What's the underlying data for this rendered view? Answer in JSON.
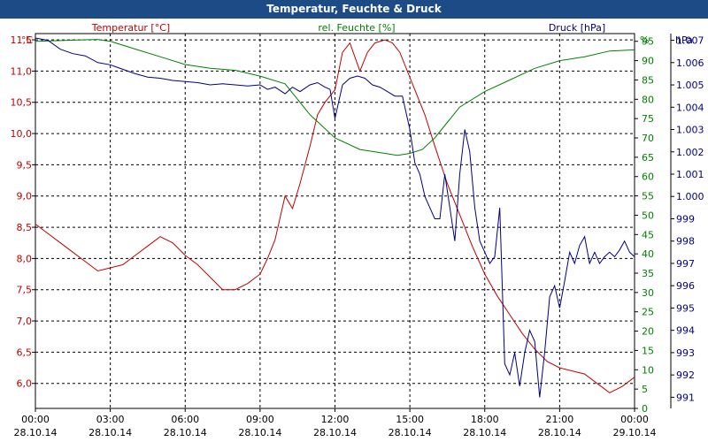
{
  "window": {
    "title": "Temperatur, Feuchte & Druck"
  },
  "chart_data": {
    "type": "line",
    "title": "Temperatur, Feuchte & Druck",
    "grid": true,
    "x_ticks": [
      {
        "time": "00:00",
        "date": "28.10.14"
      },
      {
        "time": "03:00",
        "date": "28.10.14"
      },
      {
        "time": "06:00",
        "date": "28.10.14"
      },
      {
        "time": "09:00",
        "date": "28.10.14"
      },
      {
        "time": "12:00",
        "date": "28.10.14"
      },
      {
        "time": "15:00",
        "date": "28.10.14"
      },
      {
        "time": "18:00",
        "date": "28.10.14"
      },
      {
        "time": "21:00",
        "date": "28.10.14"
      },
      {
        "time": "00:00",
        "date": "29.10.14"
      }
    ],
    "axes": {
      "temperature": {
        "label": "Temperatur [°C]",
        "unit": "°C",
        "color": "#c00000",
        "range": [
          5.6,
          11.6
        ],
        "ticks": [
          "11,5",
          "11,0",
          "10,5",
          "10,0",
          "9,5",
          "9,0",
          "8,5",
          "8,0",
          "7,5",
          "7,0",
          "6,5",
          "6,0"
        ]
      },
      "humidity": {
        "label": "rel. Feuchte [%]",
        "unit": "%",
        "color": "#008000",
        "range": [
          0,
          97
        ],
        "ticks": [
          "95",
          "90",
          "85",
          "80",
          "75",
          "70",
          "65",
          "60",
          "55",
          "50",
          "45",
          "40",
          "35",
          "30",
          "25",
          "20",
          "15",
          "10",
          "5",
          "0"
        ]
      },
      "pressure": {
        "label": "Druck [hPa]",
        "unit": "hPa",
        "color": "#000080",
        "range": [
          990.5,
          1007.3
        ],
        "ticks": [
          "1.007",
          "1.006",
          "1.005",
          "1.004",
          "1.003",
          "1.002",
          "1.001",
          "1.000",
          "999",
          "998",
          "997",
          "996",
          "995",
          "994",
          "993",
          "992",
          "991"
        ]
      }
    },
    "series": [
      {
        "name": "Temperatur [°C]",
        "axis": "temperature",
        "color": "#c00000",
        "hours": [
          0,
          0.5,
          1,
          1.5,
          2,
          2.5,
          3,
          3.5,
          4,
          4.5,
          5,
          5.5,
          6,
          6.5,
          7,
          7.5,
          8,
          8.5,
          9,
          9.3,
          9.6,
          10,
          10.3,
          10.6,
          11,
          11.3,
          11.6,
          12,
          12.3,
          12.6,
          13,
          13.3,
          13.6,
          14,
          14.3,
          14.6,
          15,
          15.3,
          15.6,
          16,
          16.5,
          17,
          17.5,
          18,
          18.5,
          19,
          19.5,
          20,
          20.5,
          21,
          21.5,
          22,
          22.5,
          23,
          23.5,
          24
        ],
        "values": [
          8.55,
          8.4,
          8.25,
          8.1,
          7.95,
          7.8,
          7.85,
          7.9,
          8.05,
          8.2,
          8.35,
          8.25,
          8.05,
          7.9,
          7.7,
          7.5,
          7.5,
          7.6,
          7.75,
          8.0,
          8.3,
          9.0,
          8.8,
          9.2,
          9.8,
          10.3,
          10.5,
          10.7,
          11.3,
          11.45,
          11.0,
          11.3,
          11.45,
          11.5,
          11.45,
          11.3,
          10.9,
          10.6,
          10.3,
          9.8,
          9.2,
          8.7,
          8.2,
          7.75,
          7.4,
          7.1,
          6.8,
          6.55,
          6.35,
          6.25,
          6.2,
          6.15,
          6.0,
          5.85,
          5.95,
          6.1
        ]
      },
      {
        "name": "rel. Feuchte [%]",
        "axis": "humidity",
        "color": "#008000",
        "hours": [
          0,
          1,
          2,
          2.5,
          3,
          4,
          5,
          6,
          7,
          8,
          9,
          10,
          11,
          12,
          13,
          14,
          14.5,
          15,
          15.5,
          16,
          16.5,
          17,
          18,
          19,
          20,
          21,
          22,
          23,
          24
        ],
        "values": [
          95,
          95.2,
          95.4,
          95.5,
          95,
          93,
          91,
          89,
          88,
          87.5,
          86,
          84,
          76,
          70,
          67,
          66,
          65.5,
          66,
          67,
          70,
          74,
          78,
          82,
          85,
          88,
          90,
          91,
          92.5,
          92.8
        ]
      },
      {
        "name": "Druck [hPa]",
        "axis": "pressure",
        "color": "#000080",
        "hours": [
          0,
          0.5,
          1,
          1.5,
          2,
          2.5,
          3,
          3.5,
          4,
          4.5,
          5,
          5.5,
          6,
          6.5,
          7,
          7.5,
          8,
          8.5,
          9,
          9.3,
          9.6,
          10,
          10.3,
          10.6,
          11,
          11.3,
          11.6,
          11.8,
          12,
          12.3,
          12.6,
          12.9,
          13.2,
          13.5,
          13.8,
          14.1,
          14.4,
          14.7,
          15,
          15.2,
          15.4,
          15.6,
          15.8,
          16,
          16.2,
          16.4,
          16.6,
          16.8,
          17,
          17.2,
          17.4,
          17.6,
          17.8,
          18,
          18.2,
          18.4,
          18.6,
          18.8,
          19,
          19.2,
          19.4,
          19.6,
          19.8,
          20,
          20.2,
          20.4,
          20.6,
          20.8,
          21,
          21.2,
          21.4,
          21.6,
          21.8,
          22,
          22.2,
          22.4,
          22.6,
          22.8,
          23,
          23.2,
          23.4,
          23.6,
          23.8,
          24
        ],
        "values": [
          1007.1,
          1007.0,
          1006.6,
          1006.4,
          1006.3,
          1006.0,
          1005.9,
          1005.7,
          1005.5,
          1005.35,
          1005.3,
          1005.2,
          1005.15,
          1005.1,
          1005.0,
          1005.05,
          1005.0,
          1004.95,
          1005.0,
          1004.8,
          1004.9,
          1004.6,
          1004.9,
          1004.7,
          1005.0,
          1005.1,
          1004.9,
          1004.8,
          1003.5,
          1005.0,
          1005.3,
          1005.4,
          1005.3,
          1005.0,
          1004.9,
          1004.7,
          1004.5,
          1004.5,
          1003.0,
          1001.5,
          1001.0,
          1000.0,
          999.5,
          999.0,
          999.0,
          1001.0,
          999.5,
          998.0,
          1001.0,
          1003.0,
          1002.0,
          999.5,
          998.0,
          997.5,
          997.0,
          997.3,
          999.5,
          992.5,
          992.0,
          993.0,
          991.5,
          993.0,
          994.0,
          993.5,
          991.0,
          993.0,
          995.5,
          996.0,
          995.0,
          996.2,
          997.5,
          997.0,
          997.8,
          998.2,
          997.0,
          997.5,
          997.0,
          997.3,
          997.5,
          997.3,
          997.6,
          998.0,
          997.5,
          997.3
        ]
      }
    ]
  }
}
